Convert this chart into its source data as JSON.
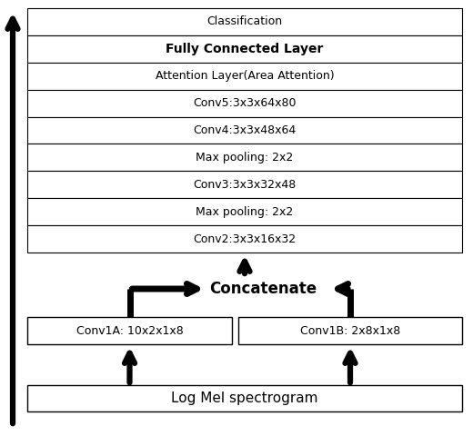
{
  "main_layers": [
    "Classification",
    "Fully Connected Layer",
    "Attention Layer(Area Attention)",
    "Conv5:3x3x64x80",
    "Conv4:3x3x48x64",
    "Max pooling: 2x2",
    "Conv3:3x3x32x48",
    "Max pooling: 2x2",
    "Conv2:3x3x16x32"
  ],
  "conv1a_label": "Conv1A: 10x2x1x8",
  "conv1b_label": "Conv1B: 2x8x1x8",
  "bottom_label": "Log Mel spectrogram",
  "concatenate_label": "Concatenate",
  "bg_color": "#ffffff",
  "box_color": "#ffffff",
  "border_color": "#000000",
  "text_color": "#000000",
  "arrow_color": "#000000",
  "bold_layers": [
    "Fully Connected Layer"
  ],
  "fig_width": 5.2,
  "fig_height": 4.8,
  "dpi": 100
}
